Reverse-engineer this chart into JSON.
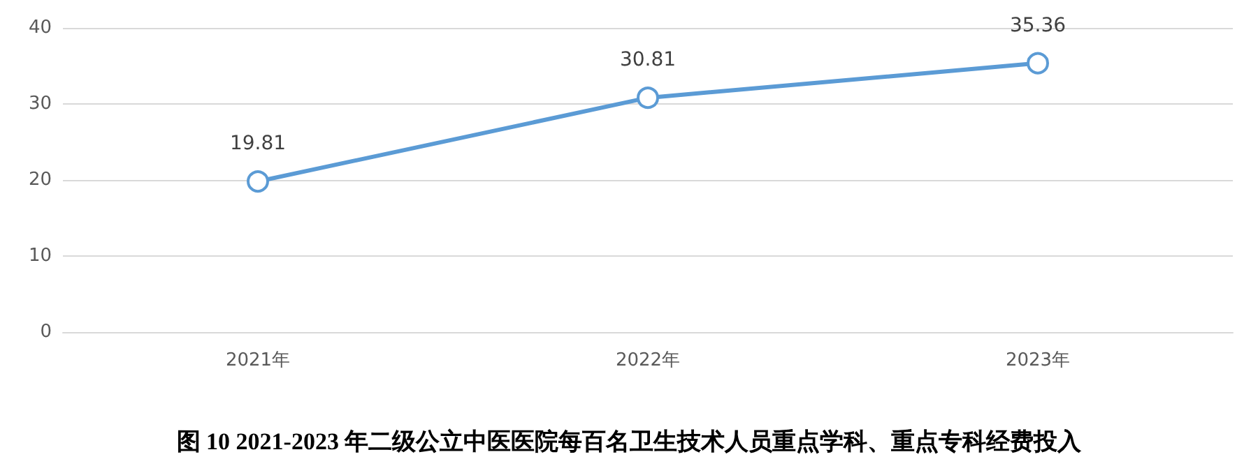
{
  "chart_data": {
    "type": "line",
    "title": "图 10 2021-2023 年二级公立中医医院每百名卫生技术人员重点学科、重点专科经费投入",
    "categories": [
      "2021年",
      "2022年",
      "2023年"
    ],
    "series": [
      {
        "color": "#5b9bd5",
        "values": [
          19.81,
          30.81,
          35.36
        ]
      }
    ],
    "ylim": [
      0,
      40
    ],
    "yticks": [
      0,
      10,
      20,
      30,
      40
    ],
    "grid": "y",
    "marker": "circle",
    "line_style": "solid",
    "data_labels": true
  }
}
